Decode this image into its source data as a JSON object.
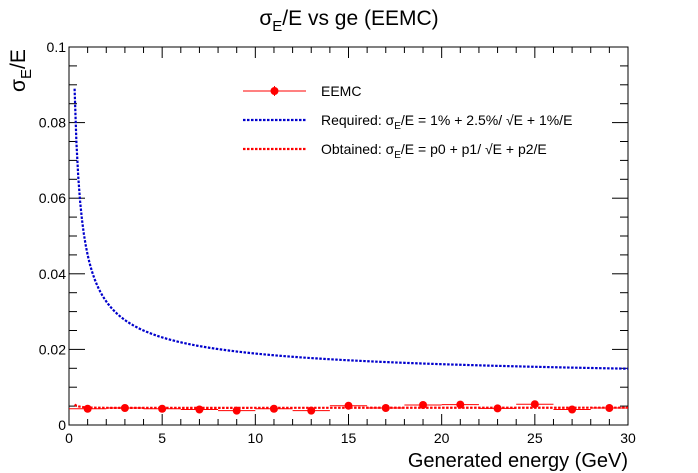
{
  "chart_data": {
    "type": "line",
    "title": {
      "prefix": "σ",
      "sub": "E",
      "suffix": "/E vs ge (EEMC)"
    },
    "xlabel": "Generated energy (GeV)",
    "ylabel": {
      "prefix": "σ",
      "sub": "E",
      "suffix": "/E"
    },
    "xlim": [
      0,
      30
    ],
    "ylim": [
      0,
      0.1
    ],
    "xticks": [
      0,
      5,
      10,
      15,
      20,
      25,
      30
    ],
    "xtick_labels": [
      "0",
      "5",
      "10",
      "15",
      "20",
      "25",
      "30"
    ],
    "yticks": [
      0,
      0.02,
      0.04,
      0.06,
      0.08,
      0.1
    ],
    "ytick_labels": [
      "0",
      "0.02",
      "0.04",
      "0.06",
      "0.08",
      "0.1"
    ],
    "grid": false,
    "legend_position": "top-center",
    "legend": [
      {
        "key": "eemc",
        "text": "EEMC"
      },
      {
        "key": "required",
        "pre": "Required: σ",
        "sub": "E",
        "post": "/E = 1% + 2.5%/ √E + 1%/E"
      },
      {
        "key": "obtained",
        "pre": "Obtained: σ",
        "sub": "E",
        "post": "/E = p0 + p1/ √E + p2/E"
      }
    ],
    "series": [
      {
        "key": "eemc",
        "style": "markers",
        "color": "#ff0000",
        "x": [
          1,
          3,
          5,
          7,
          9,
          11,
          13,
          15,
          17,
          19,
          21,
          23,
          25,
          27,
          29
        ],
        "y": [
          0.0043,
          0.0045,
          0.0043,
          0.0041,
          0.0038,
          0.0043,
          0.0038,
          0.0051,
          0.0045,
          0.0053,
          0.0054,
          0.0044,
          0.0055,
          0.0041,
          0.0045
        ],
        "xerr": [
          1,
          1,
          1,
          1,
          1,
          1,
          1,
          1,
          1,
          1,
          1,
          1,
          1,
          1,
          1
        ],
        "yerr": [
          0.0003,
          0.0003,
          0.0003,
          0.0003,
          0.0003,
          0.0003,
          0.0003,
          0.0003,
          0.0003,
          0.0003,
          0.0005,
          0.0003,
          0.0003,
          0.0003,
          0.0003
        ]
      },
      {
        "key": "required",
        "style": "dotted-line",
        "color": "#0000cc",
        "function": {
          "a": 0.01,
          "b": 0.025,
          "c": 0.01,
          "xmin": 0.3,
          "xmax": 30
        }
      },
      {
        "key": "obtained",
        "style": "dotted-line",
        "color": "#ff0000",
        "function": {
          "a": 0.00465,
          "b": -0.0005,
          "c": 0.0005,
          "xmin": 0.3,
          "xmax": 30
        }
      }
    ]
  }
}
